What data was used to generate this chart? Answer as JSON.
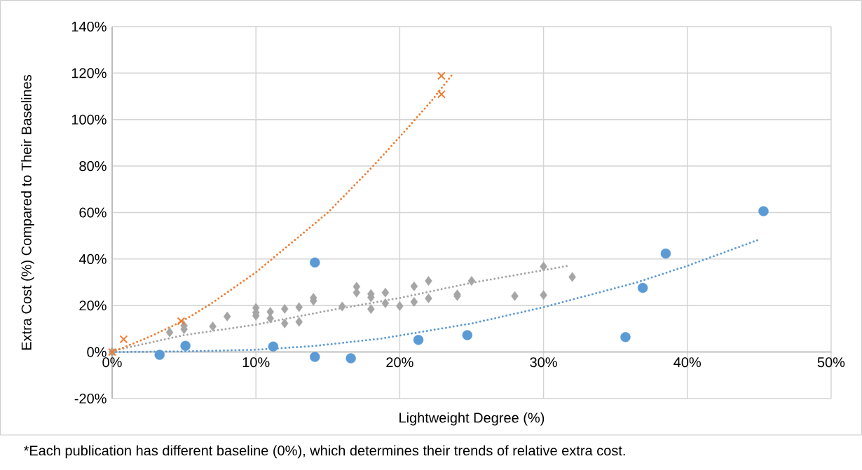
{
  "chart_data": {
    "type": "scatter",
    "xlabel": "Lightweight Degree (%)",
    "ylabel": "Extra Cost (%) Compared to Their Baselines",
    "annotations": [
      "*Each publication has different baseline (0%), which determines their trends of relative extra cost."
    ],
    "xlim": [
      0,
      50
    ],
    "ylim": [
      -20,
      140
    ],
    "xticks": [
      {
        "value": 0,
        "label": "0%"
      },
      {
        "value": 10,
        "label": "10%"
      },
      {
        "value": 20,
        "label": "20%"
      },
      {
        "value": 30,
        "label": "30%"
      },
      {
        "value": 40,
        "label": "40%"
      },
      {
        "value": 50,
        "label": "50%"
      }
    ],
    "yticks": [
      {
        "value": -20,
        "label": "-20%"
      },
      {
        "value": 0,
        "label": "0%"
      },
      {
        "value": 20,
        "label": "20%"
      },
      {
        "value": 40,
        "label": "40%"
      },
      {
        "value": 60,
        "label": "60%"
      },
      {
        "value": 80,
        "label": "80%"
      },
      {
        "value": 100,
        "label": "100%"
      },
      {
        "value": 120,
        "label": "120%"
      },
      {
        "value": 140,
        "label": "140%"
      }
    ],
    "grid": true,
    "series": [
      {
        "type": "line",
        "color": "#a5a5a5",
        "marker": "none",
        "line_style": "dotted",
        "x": [
          0,
          5,
          10,
          15,
          20,
          25,
          31.7
        ],
        "values": [
          0.5,
          7.3,
          11.8,
          17.8,
          23.3,
          29.8,
          37.1
        ]
      },
      {
        "type": "line",
        "color": "#5b9bd5",
        "marker": "none",
        "line_style": "dotted",
        "x": [
          0,
          5,
          10,
          14,
          18.7,
          25,
          30,
          36.5,
          40,
          44.9
        ],
        "values": [
          0,
          0.3,
          1,
          2.6,
          5.8,
          12.3,
          19.3,
          30,
          37.1,
          48.2
        ]
      },
      {
        "type": "line",
        "color": "#ed7d31",
        "marker": "none",
        "line_style": "dotted",
        "x": [
          0,
          2.5,
          4.8,
          6.75,
          10,
          15,
          18.1,
          20,
          22.2,
          23.6
        ],
        "values": [
          0,
          6.3,
          13,
          20.3,
          34.3,
          60,
          79.7,
          92.6,
          108,
          119
        ]
      },
      {
        "color": "#5b9bd5",
        "marker": "circle",
        "x": [
          3.3,
          5.1,
          11.2,
          14.1,
          14.1,
          16.6,
          21.3,
          24.7,
          35.7,
          36.9,
          38.5,
          45.3
        ],
        "values": [
          -1.2,
          2.7,
          2.4,
          -2.1,
          38.5,
          -2.7,
          5.2,
          7.3,
          6.4,
          27.6,
          42.4,
          60.6
        ]
      },
      {
        "color": "#a5a5a5",
        "marker": "diamond",
        "x": [
          0,
          4,
          5,
          5,
          7,
          8,
          10,
          10,
          10,
          11,
          11,
          12,
          12,
          13,
          13,
          14,
          14,
          16,
          17,
          17,
          18,
          18,
          18,
          19,
          19,
          20,
          21,
          21,
          22,
          22,
          24,
          24,
          25,
          28,
          30,
          30,
          32
        ],
        "values": [
          0,
          8.5,
          11.3,
          9.8,
          11,
          15.3,
          19,
          17,
          15.6,
          17.3,
          14.5,
          18.6,
          12.3,
          19.3,
          13,
          23.3,
          22,
          19.6,
          28.1,
          25.6,
          25,
          23.5,
          18.5,
          25.6,
          21,
          19.8,
          28.3,
          21.6,
          30.6,
          23.1,
          24.8,
          24.1,
          30.6,
          24.1,
          36.8,
          24.5,
          32.3
        ]
      },
      {
        "color": "#ed7d31",
        "marker": "cross",
        "x": [
          0,
          0.8,
          4.8,
          22.9,
          22.9
        ],
        "values": [
          0,
          5.5,
          13.3,
          118.8,
          110.9
        ]
      }
    ]
  }
}
